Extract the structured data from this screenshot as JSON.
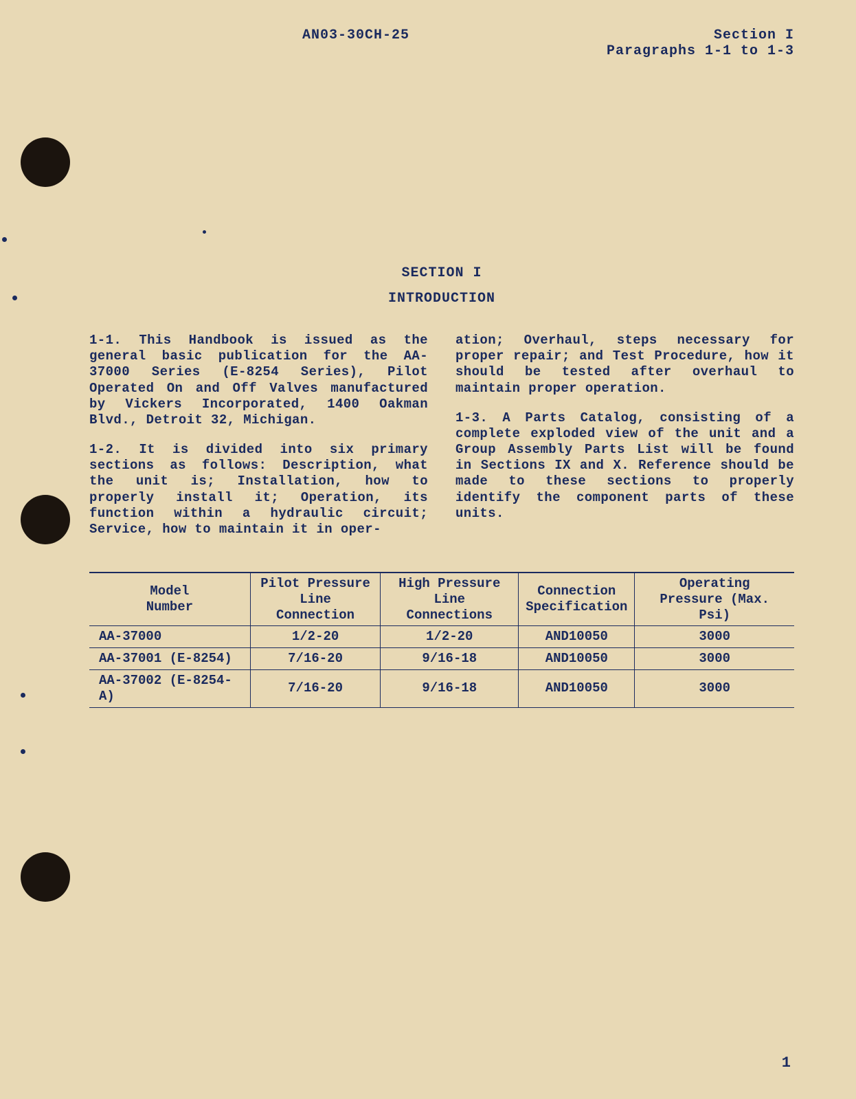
{
  "header": {
    "doc_id": "AN03-30CH-25",
    "section_line": "Section I",
    "para_line": "Paragraphs 1-1 to 1-3"
  },
  "titles": {
    "section": "SECTION I",
    "intro": "INTRODUCTION"
  },
  "paragraphs": {
    "p1": "1-1. This Handbook is issued as the general basic publication for the AA-37000 Series (E-8254 Series), Pilot Operated On and Off Valves manufactured by Vickers Incorporated, 1400 Oakman Blvd., Detroit 32, Michigan.",
    "p2a": "1-2. It is divided into six primary sections as follows: Description, what the unit is; Installation, how to properly install it; Operation, its function within a hydraulic circuit; Service, how to maintain it in oper-",
    "p2b": "ation; Overhaul, steps necessary for proper repair; and Test Procedure, how it should be tested after overhaul to maintain proper op­eration.",
    "p3": "1-3. A Parts Catalog, consisting of a com­plete exploded view of the unit and a Group Assembly Parts List will be found in Sections IX and X. Reference should be made to these sections to properly identify the component parts of these units."
  },
  "table": {
    "headers": {
      "model_l1": "Model",
      "model_l2": "Number",
      "pilot_l1": "Pilot Pressure",
      "pilot_l2": "Line Connection",
      "high_l1": "High Pressure",
      "high_l2": "Line Connections",
      "conn_l1": "Connection",
      "conn_l2": "Specification",
      "op_l1": "Operating",
      "op_l2": "Pressure (Max. Psi)"
    },
    "rows": [
      {
        "model": "AA-37000",
        "pilot": "1/2-20",
        "high": "1/2-20",
        "conn": "AND10050",
        "op": "3000"
      },
      {
        "model": "AA-37001  (E-8254)",
        "pilot": "7/16-20",
        "high": "9/16-18",
        "conn": "AND10050",
        "op": "3000"
      },
      {
        "model": "AA-37002  (E-8254-A)",
        "pilot": "7/16-20",
        "high": "9/16-18",
        "conn": "AND10050",
        "op": "3000"
      }
    ]
  },
  "page_number": "1",
  "colors": {
    "paper": "#e8d9b5",
    "ink": "#1a2a5e",
    "hole": "#1b140e"
  }
}
